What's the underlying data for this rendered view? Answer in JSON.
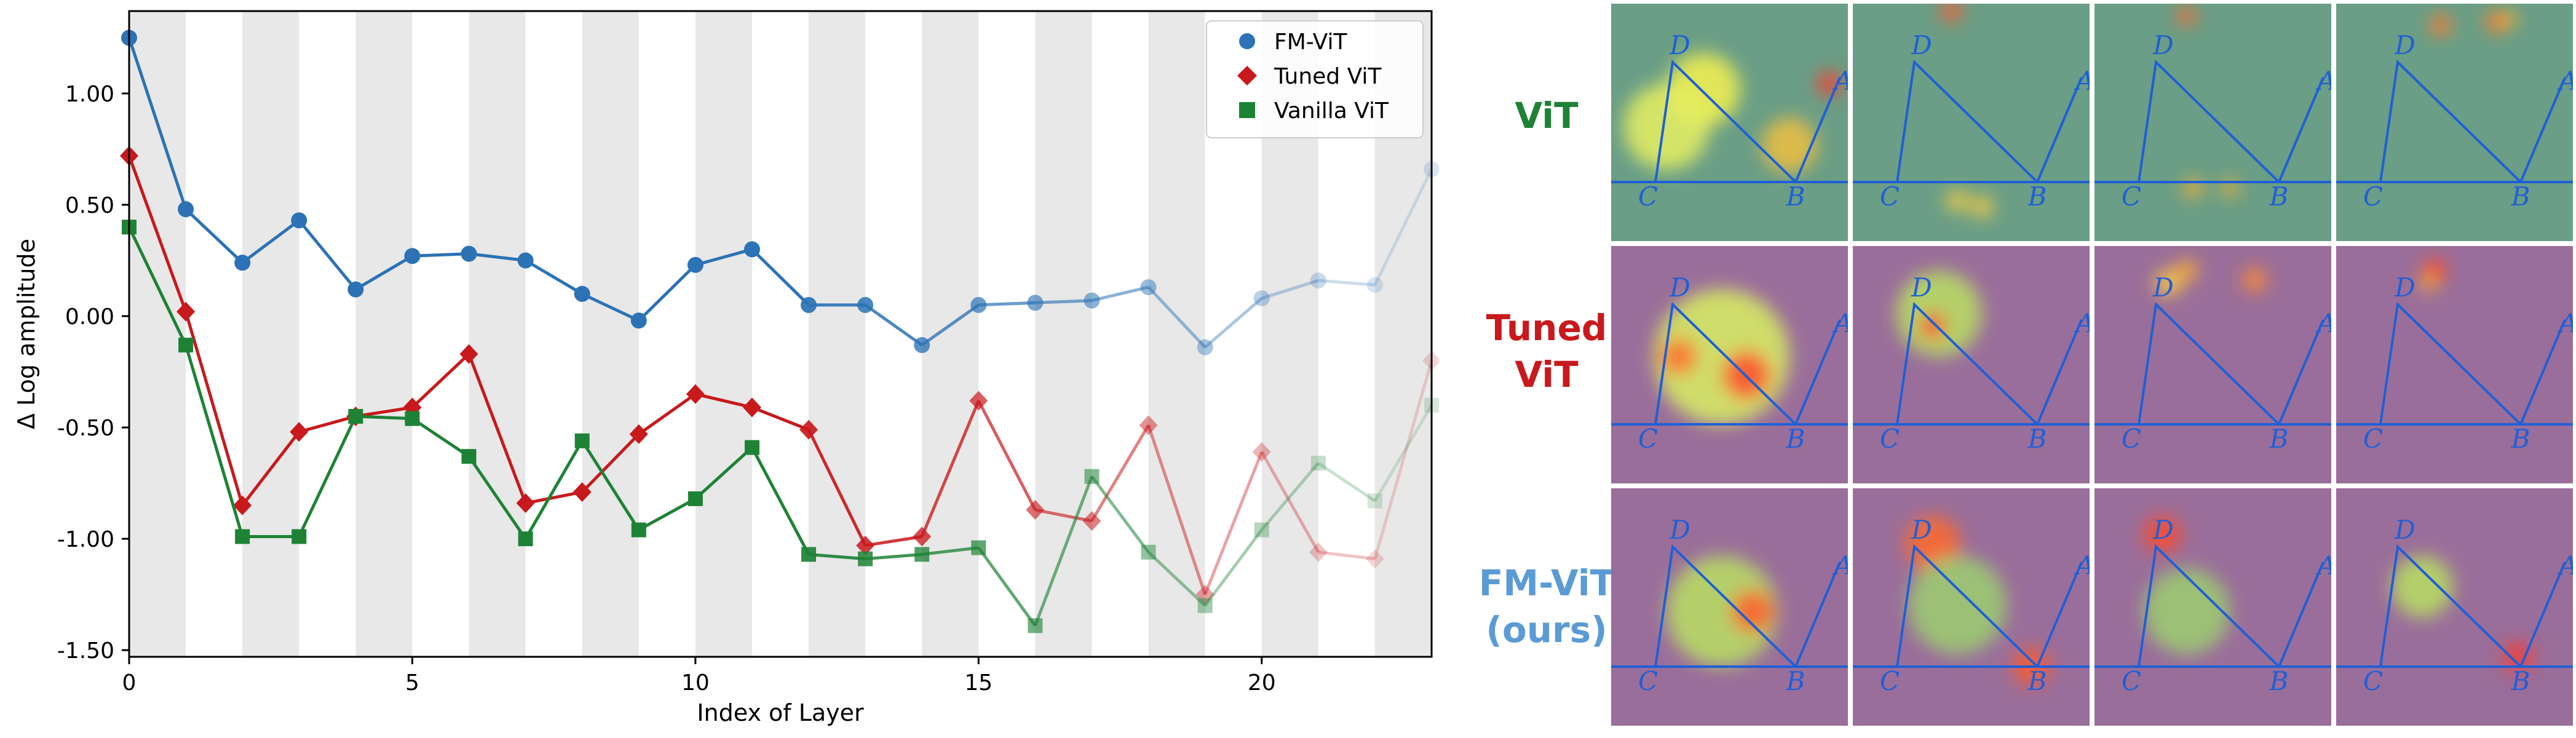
{
  "chart_data": {
    "type": "line",
    "xlabel": "Index of Layer",
    "ylabel": "Δ Log amplitude",
    "xlim": [
      0,
      23
    ],
    "ylim": [
      -1.53,
      1.37
    ],
    "x_ticks": [
      0,
      5,
      10,
      15,
      20
    ],
    "x_tick_labels": [
      "0",
      "5",
      "10",
      "15",
      "20"
    ],
    "y_ticks": [
      1.0,
      0.5,
      0.0,
      -0.5,
      -1.0,
      -1.5
    ],
    "y_tick_labels": [
      "1.00",
      "0.50",
      "0.00",
      "-0.50",
      "-1.00",
      "-1.50"
    ],
    "background_bands": "alternating gray / white vertical stripes, one per layer",
    "legend_position": "top-right",
    "series": [
      {
        "name": "FM-ViT",
        "marker": "circle",
        "color": "#2c72b5",
        "x": [
          0,
          1,
          2,
          3,
          4,
          5,
          6,
          7,
          8,
          9,
          10,
          11,
          12,
          13,
          14,
          15,
          16,
          17,
          18,
          19,
          20,
          21,
          22,
          23
        ],
        "y": [
          1.25,
          0.48,
          0.24,
          0.43,
          0.12,
          0.27,
          0.28,
          0.25,
          0.1,
          -0.02,
          0.23,
          0.3,
          0.05,
          0.05,
          -0.13,
          0.05,
          0.06,
          0.07,
          0.13,
          -0.14,
          0.08,
          0.16,
          0.14,
          0.66
        ]
      },
      {
        "name": "Tuned ViT",
        "marker": "diamond",
        "color": "#c8191c",
        "x": [
          0,
          1,
          2,
          3,
          4,
          5,
          6,
          7,
          8,
          9,
          10,
          11,
          12,
          13,
          14,
          15,
          16,
          17,
          18,
          19,
          20,
          21,
          22,
          23
        ],
        "y": [
          0.72,
          0.02,
          -0.85,
          -0.52,
          -0.45,
          -0.41,
          -0.17,
          -0.84,
          -0.79,
          -0.53,
          -0.35,
          -0.41,
          -0.51,
          -1.03,
          -0.99,
          -0.38,
          -0.87,
          -0.92,
          -0.49,
          -1.25,
          -0.61,
          -1.06,
          -1.09,
          -0.2
        ]
      },
      {
        "name": "Vanilla ViT",
        "marker": "square",
        "color": "#1e8236",
        "x": [
          0,
          1,
          2,
          3,
          4,
          5,
          6,
          7,
          8,
          9,
          10,
          11,
          12,
          13,
          14,
          15,
          16,
          17,
          18,
          19,
          20,
          21,
          22,
          23
        ],
        "y": [
          0.4,
          -0.13,
          -0.99,
          -0.99,
          -0.45,
          -0.46,
          -0.63,
          -1.0,
          -0.56,
          -0.96,
          -0.82,
          -0.59,
          -1.07,
          -1.09,
          -1.07,
          -1.04,
          -1.39,
          -0.72,
          -1.06,
          -1.3,
          -0.96,
          -0.66,
          -0.83,
          -0.4
        ]
      }
    ]
  },
  "heatmap_grid": {
    "row_labels": [
      {
        "text": "ViT",
        "color": "#1e8236"
      },
      {
        "text": "Tuned\nViT",
        "color": "#c8191c"
      },
      {
        "text": "FM-ViT\n(ours)",
        "color": "#5b9bd5"
      }
    ],
    "point_labels": [
      "D",
      "A",
      "C",
      "B"
    ],
    "columns": 4,
    "row_backgrounds": [
      "#6a9e86",
      "#9a6e9a",
      "#9a6e9a"
    ]
  }
}
